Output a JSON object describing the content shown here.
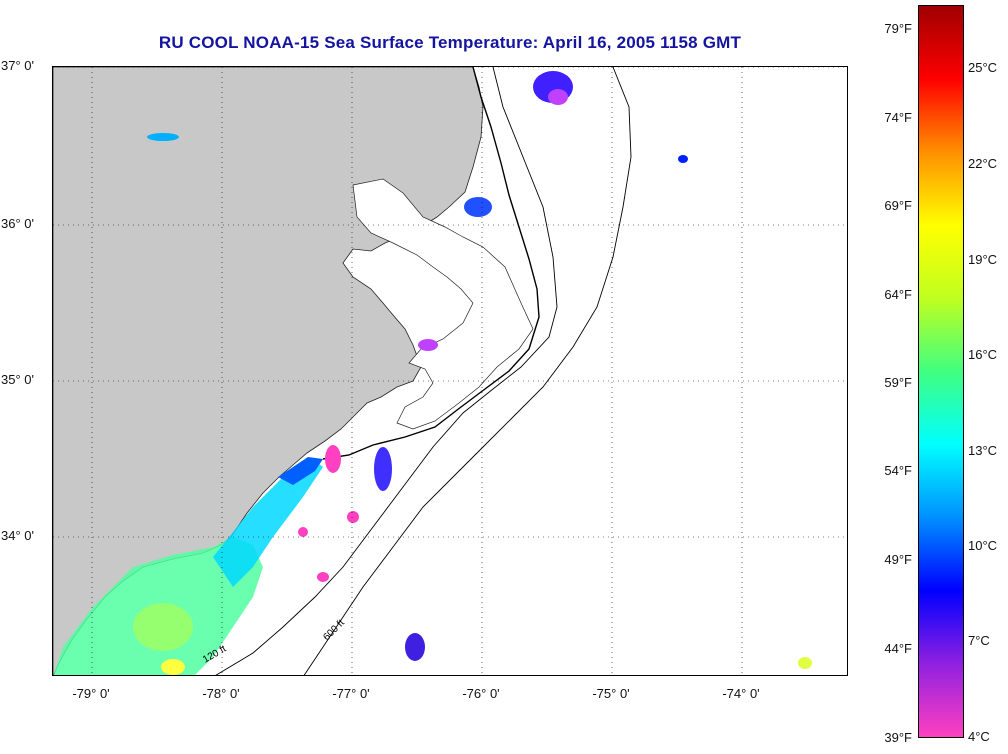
{
  "title": "RU COOL  NOAA-15  Sea Surface Temperature:  April 16, 2005 1158 GMT",
  "map": {
    "lat_labels": [
      "37° 0'",
      "36° 0'",
      "35° 0'",
      "34° 0'"
    ],
    "lon_labels": [
      "-79° 0'",
      "-78° 0'",
      "-77° 0'",
      "-76° 0'",
      "-75° 0'",
      "-74° 0'"
    ],
    "lat_range": [
      33.1,
      37.0
    ],
    "lon_range": [
      -79.3,
      -73.2
    ],
    "grid": "dotted",
    "land_color": "#c8c8c8",
    "contour_labels": [
      "120 ft",
      "600 ft"
    ]
  },
  "colorbar": {
    "fahrenheit_labels": [
      "79°F",
      "74°F",
      "69°F",
      "64°F",
      "59°F",
      "54°F",
      "49°F",
      "44°F",
      "39°F"
    ],
    "celsius_labels": [
      "25°C",
      "22°C",
      "19°C",
      "16°C",
      "13°C",
      "10°C",
      "7°C",
      "4°C"
    ],
    "range_c": [
      4,
      27
    ],
    "colors": [
      "#ff40c0",
      "#9020e0",
      "#0000ff",
      "#0090ff",
      "#00ffff",
      "#40ff80",
      "#c0ff20",
      "#ffff00",
      "#ff9000",
      "#ff0000",
      "#a00000"
    ]
  },
  "icons": {
    "map": "sst-map-icon"
  }
}
